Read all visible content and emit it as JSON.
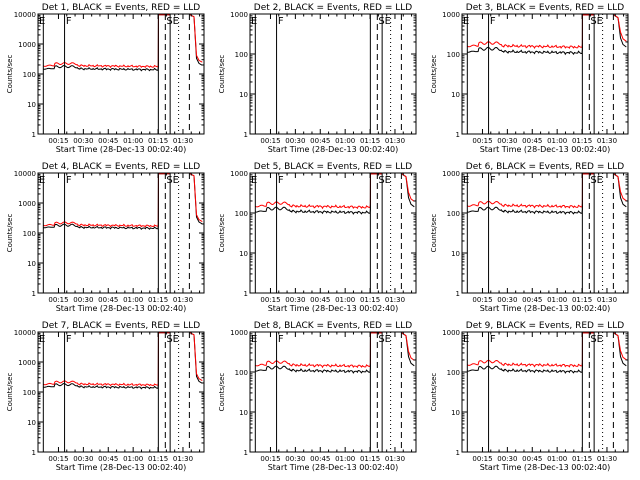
{
  "chart_data": [
    {
      "title": "Det 1, BLACK = Events, RED = LLD",
      "markers": [
        "E",
        "F",
        "SE"
      ],
      "ylabel": "Counts/sec",
      "xlabel": "Start Time (28-Dec-13 00:02:40)",
      "type": "line",
      "yscale": "log",
      "ylim": [
        1,
        10000
      ],
      "yticks": [
        "1",
        "10",
        "100",
        "1000",
        "10000"
      ],
      "xticks": [
        "00:15",
        "00:30",
        "00:45",
        "01:00",
        "01:15",
        "01:30"
      ],
      "series": [
        {
          "name": "Events",
          "color": "#000000",
          "level": 150
        },
        {
          "name": "LLD",
          "color": "#ff0000",
          "level": 190
        }
      ]
    },
    {
      "title": "Det 2, BLACK = Events, RED = LLD",
      "markers": [
        "E",
        "F",
        "SE"
      ],
      "ylabel": "Counts/sec",
      "xlabel": "Start Time (28-Dec-13 00:02:40)",
      "type": "line",
      "yscale": "log",
      "ylim": [
        1,
        1000
      ],
      "yticks": [
        "1",
        "10",
        "100",
        "1000"
      ],
      "xticks": [
        "00:15",
        "00:30",
        "00:45",
        "01:00",
        "01:15",
        "01:30"
      ],
      "series": []
    },
    {
      "title": "Det 3, BLACK = Events, RED = LLD",
      "markers": [
        "E",
        "F",
        "SE"
      ],
      "ylabel": "Counts/sec",
      "xlabel": "Start Time (28-Dec-13 00:02:40)",
      "type": "line",
      "yscale": "log",
      "ylim": [
        1,
        1000
      ],
      "yticks": [
        "1",
        "10",
        "100",
        "1000"
      ],
      "xticks": [
        "00:15",
        "00:30",
        "00:45",
        "01:00",
        "01:15",
        "01:30"
      ],
      "series": [
        {
          "name": "Events",
          "color": "#000000",
          "level": 115
        },
        {
          "name": "LLD",
          "color": "#ff0000",
          "level": 160
        }
      ]
    },
    {
      "title": "Det 4, BLACK = Events, RED = LLD",
      "markers": [
        "E",
        "F",
        "SE"
      ],
      "ylabel": "Counts/sec",
      "xlabel": "Start Time (28-Dec-13 00:02:40)",
      "type": "line",
      "yscale": "log",
      "ylim": [
        1,
        10000
      ],
      "yticks": [
        "1",
        "10",
        "100",
        "1000",
        "10000"
      ],
      "xticks": [
        "00:15",
        "00:30",
        "00:45",
        "01:00",
        "01:15",
        "01:30"
      ],
      "series": [
        {
          "name": "Events",
          "color": "#000000",
          "level": 155
        },
        {
          "name": "LLD",
          "color": "#ff0000",
          "level": 185
        }
      ]
    },
    {
      "title": "Det 5, BLACK = Events, RED = LLD",
      "markers": [
        "E",
        "F",
        "SE"
      ],
      "ylabel": "Counts/sec",
      "xlabel": "Start Time (28-Dec-13 00:02:40)",
      "type": "line",
      "yscale": "log",
      "ylim": [
        1,
        1000
      ],
      "yticks": [
        "1",
        "10",
        "100",
        "1000"
      ],
      "xticks": [
        "00:15",
        "00:30",
        "00:45",
        "01:00",
        "01:15",
        "01:30"
      ],
      "series": [
        {
          "name": "Events",
          "color": "#000000",
          "level": 110
        },
        {
          "name": "LLD",
          "color": "#ff0000",
          "level": 150
        }
      ]
    },
    {
      "title": "Det 6, BLACK = Events, RED = LLD",
      "markers": [
        "E",
        "F",
        "SE"
      ],
      "ylabel": "Counts/sec",
      "xlabel": "Start Time (28-Dec-13 00:02:40)",
      "type": "line",
      "yscale": "log",
      "ylim": [
        1,
        1000
      ],
      "yticks": [
        "1",
        "10",
        "100",
        "1000"
      ],
      "xticks": [
        "00:15",
        "00:30",
        "00:45",
        "01:00",
        "01:15",
        "01:30"
      ],
      "series": [
        {
          "name": "Events",
          "color": "#000000",
          "level": 110
        },
        {
          "name": "LLD",
          "color": "#ff0000",
          "level": 155
        }
      ]
    },
    {
      "title": "Det 7, BLACK = Events, RED = LLD",
      "markers": [
        "E",
        "F",
        "SE"
      ],
      "ylabel": "Counts/sec",
      "xlabel": "Start Time (28-Dec-13 00:02:40)",
      "type": "line",
      "yscale": "log",
      "ylim": [
        1,
        10000
      ],
      "yticks": [
        "1",
        "10",
        "100",
        "1000",
        "10000"
      ],
      "xticks": [
        "00:15",
        "00:30",
        "00:45",
        "01:00",
        "01:15",
        "01:30"
      ],
      "series": [
        {
          "name": "Events",
          "color": "#000000",
          "level": 150
        },
        {
          "name": "LLD",
          "color": "#ff0000",
          "level": 185
        }
      ]
    },
    {
      "title": "Det 8, BLACK = Events, RED = LLD",
      "markers": [
        "E",
        "F",
        "SE"
      ],
      "ylabel": "Counts/sec",
      "xlabel": "Start Time (28-Dec-13 00:02:40)",
      "type": "line",
      "yscale": "log",
      "ylim": [
        1,
        1000
      ],
      "yticks": [
        "1",
        "10",
        "100",
        "1000"
      ],
      "xticks": [
        "00:15",
        "00:30",
        "00:45",
        "01:00",
        "01:15",
        "01:30"
      ],
      "series": [
        {
          "name": "Events",
          "color": "#000000",
          "level": 110
        },
        {
          "name": "LLD",
          "color": "#ff0000",
          "level": 150
        }
      ]
    },
    {
      "title": "Det 9, BLACK = Events, RED = LLD",
      "markers": [
        "E",
        "F",
        "SE"
      ],
      "ylabel": "Counts/sec",
      "xlabel": "Start Time (28-Dec-13 00:02:40)",
      "type": "line",
      "yscale": "log",
      "ylim": [
        1,
        1000
      ],
      "yticks": [
        "1",
        "10",
        "100",
        "1000"
      ],
      "xticks": [
        "00:15",
        "00:30",
        "00:45",
        "01:00",
        "01:15",
        "01:30"
      ],
      "series": [
        {
          "name": "Events",
          "color": "#000000",
          "level": 110
        },
        {
          "name": "LLD",
          "color": "#ff0000",
          "level": 155
        }
      ]
    }
  ]
}
